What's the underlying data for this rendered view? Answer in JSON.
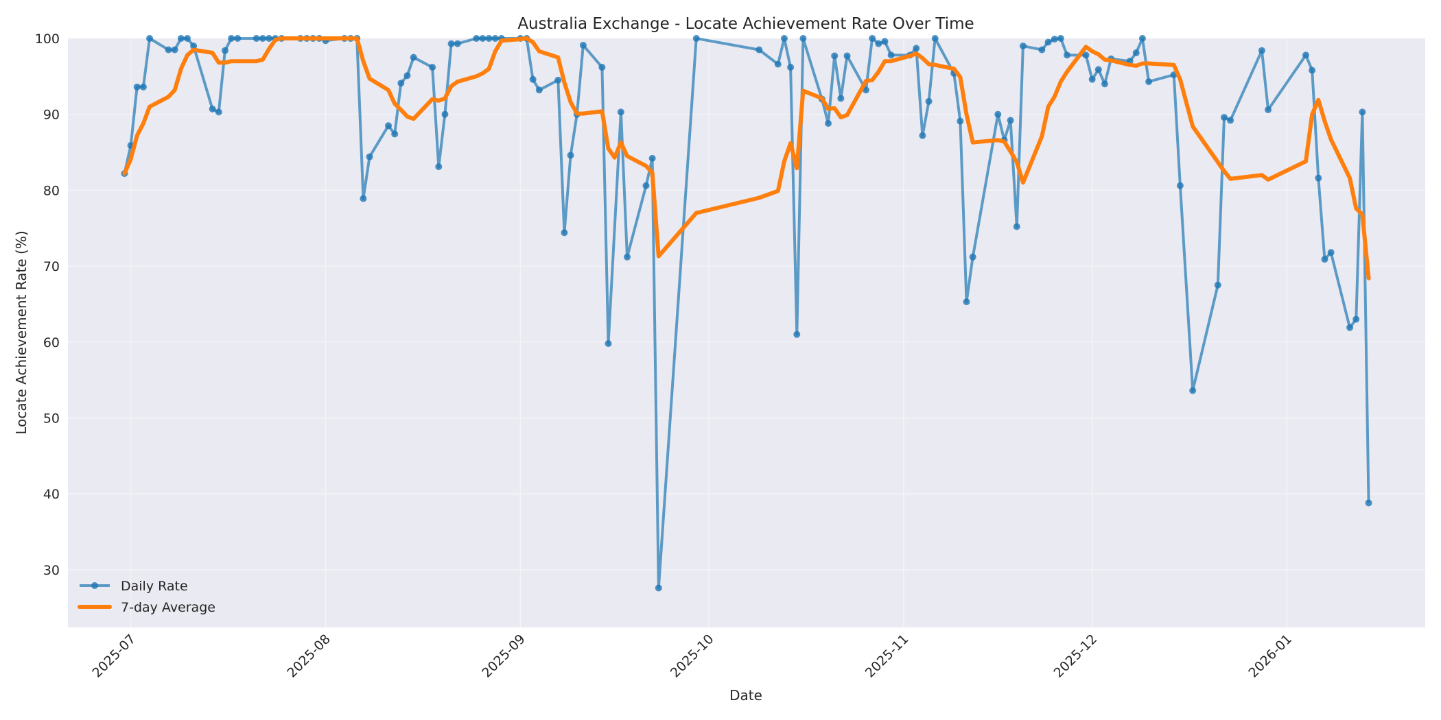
{
  "chart_data": {
    "type": "line",
    "title": "Australia Exchange - Locate Achievement Rate Over Time",
    "xlabel": "Date",
    "ylabel": "Locate Achievement Rate (%)",
    "ylim": [
      22.4,
      100
    ],
    "yticks": [
      30,
      40,
      50,
      60,
      70,
      80,
      90,
      100
    ],
    "xticks": [
      "2025-07",
      "2025-08",
      "2025-09",
      "2025-10",
      "2025-11",
      "2025-12",
      "2026-01"
    ],
    "xlim": [
      "2025-06-21",
      "2026-01-23"
    ],
    "grid": true,
    "legend_position": "lower left",
    "colors": {
      "daily": "#1f77b4",
      "avg": "#ff7f0e",
      "background": "#eaeaf2",
      "grid": "#f5f5f8"
    },
    "series": [
      {
        "name": "Daily Rate",
        "style": "line-with-markers",
        "points": [
          [
            "2025-06-30",
            82.2
          ],
          [
            "2025-07-01",
            85.9
          ],
          [
            "2025-07-02",
            93.6
          ],
          [
            "2025-07-03",
            93.6
          ],
          [
            "2025-07-04",
            100
          ],
          [
            "2025-07-07",
            98.5
          ],
          [
            "2025-07-08",
            98.5
          ],
          [
            "2025-07-09",
            100
          ],
          [
            "2025-07-10",
            100
          ],
          [
            "2025-07-11",
            99.0
          ],
          [
            "2025-07-14",
            90.7
          ],
          [
            "2025-07-15",
            90.3
          ],
          [
            "2025-07-16",
            98.4
          ],
          [
            "2025-07-17",
            100
          ],
          [
            "2025-07-18",
            100
          ],
          [
            "2025-07-21",
            100
          ],
          [
            "2025-07-22",
            100
          ],
          [
            "2025-07-23",
            100
          ],
          [
            "2025-07-24",
            100
          ],
          [
            "2025-07-25",
            100
          ],
          [
            "2025-07-28",
            100
          ],
          [
            "2025-07-29",
            100
          ],
          [
            "2025-07-30",
            100
          ],
          [
            "2025-07-31",
            100
          ],
          [
            "2025-08-01",
            99.7
          ],
          [
            "2025-08-04",
            100
          ],
          [
            "2025-08-05",
            100
          ],
          [
            "2025-08-06",
            100
          ],
          [
            "2025-08-07",
            78.9
          ],
          [
            "2025-08-08",
            84.4
          ],
          [
            "2025-08-11",
            88.5
          ],
          [
            "2025-08-12",
            87.4
          ],
          [
            "2025-08-13",
            94.1
          ],
          [
            "2025-08-14",
            95.1
          ],
          [
            "2025-08-15",
            97.5
          ],
          [
            "2025-08-18",
            96.2
          ],
          [
            "2025-08-19",
            83.1
          ],
          [
            "2025-08-20",
            90.0
          ],
          [
            "2025-08-21",
            99.3
          ],
          [
            "2025-08-22",
            99.3
          ],
          [
            "2025-08-25",
            100
          ],
          [
            "2025-08-26",
            100
          ],
          [
            "2025-08-27",
            100
          ],
          [
            "2025-08-28",
            100
          ],
          [
            "2025-08-29",
            100
          ],
          [
            "2025-09-01",
            100
          ],
          [
            "2025-09-02",
            100
          ],
          [
            "2025-09-03",
            94.6
          ],
          [
            "2025-09-04",
            93.2
          ],
          [
            "2025-09-07",
            94.5
          ],
          [
            "2025-09-08",
            74.4
          ],
          [
            "2025-09-09",
            84.6
          ],
          [
            "2025-09-10",
            90.0
          ],
          [
            "2025-09-11",
            99.1
          ],
          [
            "2025-09-14",
            96.2
          ],
          [
            "2025-09-15",
            59.8
          ],
          [
            "2025-09-17",
            90.3
          ],
          [
            "2025-09-18",
            71.2
          ],
          [
            "2025-09-21",
            80.6
          ],
          [
            "2025-09-22",
            84.2
          ],
          [
            "2025-09-23",
            27.6
          ],
          [
            "2025-09-29",
            100
          ],
          [
            "2025-10-09",
            98.5
          ],
          [
            "2025-10-12",
            96.6
          ],
          [
            "2025-10-13",
            100
          ],
          [
            "2025-10-14",
            96.2
          ],
          [
            "2025-10-15",
            61.0
          ],
          [
            "2025-10-16",
            100
          ],
          [
            "2025-10-19",
            92.0
          ],
          [
            "2025-10-20",
            88.8
          ],
          [
            "2025-10-21",
            97.7
          ],
          [
            "2025-10-22",
            92.1
          ],
          [
            "2025-10-23",
            97.7
          ],
          [
            "2025-10-26",
            93.2
          ],
          [
            "2025-10-27",
            100
          ],
          [
            "2025-10-28",
            99.3
          ],
          [
            "2025-10-29",
            99.6
          ],
          [
            "2025-10-30",
            97.8
          ],
          [
            "2025-11-02",
            97.8
          ],
          [
            "2025-11-03",
            98.7
          ],
          [
            "2025-11-04",
            87.2
          ],
          [
            "2025-11-05",
            91.7
          ],
          [
            "2025-11-06",
            100
          ],
          [
            "2025-11-09",
            95.4
          ],
          [
            "2025-11-10",
            89.1
          ],
          [
            "2025-11-11",
            65.3
          ],
          [
            "2025-11-12",
            71.2
          ],
          [
            "2025-11-16",
            90.0
          ],
          [
            "2025-11-17",
            86.6
          ],
          [
            "2025-11-18",
            89.2
          ],
          [
            "2025-11-19",
            75.2
          ],
          [
            "2025-11-20",
            99.0
          ],
          [
            "2025-11-23",
            98.5
          ],
          [
            "2025-11-24",
            99.5
          ],
          [
            "2025-11-25",
            99.9
          ],
          [
            "2025-11-26",
            100
          ],
          [
            "2025-11-27",
            97.8
          ],
          [
            "2025-11-30",
            97.8
          ],
          [
            "2025-12-01",
            94.6
          ],
          [
            "2025-12-02",
            95.9
          ],
          [
            "2025-12-03",
            94.0
          ],
          [
            "2025-12-04",
            97.3
          ],
          [
            "2025-12-07",
            97.0
          ],
          [
            "2025-12-08",
            98.1
          ],
          [
            "2025-12-09",
            100
          ],
          [
            "2025-12-10",
            94.3
          ],
          [
            "2025-12-14",
            95.2
          ],
          [
            "2025-12-15",
            80.6
          ],
          [
            "2025-12-17",
            53.6
          ],
          [
            "2025-12-21",
            67.5
          ],
          [
            "2025-12-22",
            89.6
          ],
          [
            "2025-12-23",
            89.2
          ],
          [
            "2025-12-28",
            98.4
          ],
          [
            "2025-12-29",
            90.6
          ],
          [
            "2026-01-04",
            97.8
          ],
          [
            "2026-01-05",
            95.8
          ],
          [
            "2026-01-06",
            81.6
          ],
          [
            "2026-01-07",
            70.9
          ],
          [
            "2026-01-08",
            71.8
          ],
          [
            "2026-01-11",
            61.9
          ],
          [
            "2026-01-12",
            63.0
          ],
          [
            "2026-01-13",
            90.3
          ],
          [
            "2026-01-14",
            38.8
          ]
        ]
      },
      {
        "name": "7-day Average",
        "style": "thick-line",
        "points": [
          [
            "2025-06-30",
            82.2
          ],
          [
            "2025-07-01",
            84.1
          ],
          [
            "2025-07-02",
            87.2
          ],
          [
            "2025-07-03",
            88.8
          ],
          [
            "2025-07-04",
            91.0
          ],
          [
            "2025-07-07",
            92.3
          ],
          [
            "2025-07-08",
            93.2
          ],
          [
            "2025-07-09",
            96.0
          ],
          [
            "2025-07-10",
            97.8
          ],
          [
            "2025-07-11",
            98.5
          ],
          [
            "2025-07-14",
            98.1
          ],
          [
            "2025-07-15",
            96.8
          ],
          [
            "2025-07-16",
            96.8
          ],
          [
            "2025-07-17",
            97.0
          ],
          [
            "2025-07-18",
            97.0
          ],
          [
            "2025-07-21",
            97.0
          ],
          [
            "2025-07-22",
            97.2
          ],
          [
            "2025-07-23",
            98.6
          ],
          [
            "2025-07-24",
            99.8
          ],
          [
            "2025-07-25",
            100
          ],
          [
            "2025-07-28",
            100
          ],
          [
            "2025-07-29",
            100
          ],
          [
            "2025-07-30",
            100
          ],
          [
            "2025-07-31",
            100
          ],
          [
            "2025-08-01",
            100
          ],
          [
            "2025-08-04",
            100
          ],
          [
            "2025-08-05",
            100
          ],
          [
            "2025-08-06",
            100
          ],
          [
            "2025-08-07",
            97.0
          ],
          [
            "2025-08-08",
            94.7
          ],
          [
            "2025-08-11",
            93.2
          ],
          [
            "2025-08-12",
            91.4
          ],
          [
            "2025-08-13",
            90.6
          ],
          [
            "2025-08-14",
            89.7
          ],
          [
            "2025-08-15",
            89.4
          ],
          [
            "2025-08-18",
            92.0
          ],
          [
            "2025-08-19",
            91.8
          ],
          [
            "2025-08-20",
            92.1
          ],
          [
            "2025-08-21",
            93.7
          ],
          [
            "2025-08-22",
            94.3
          ],
          [
            "2025-08-25",
            95.0
          ],
          [
            "2025-08-26",
            95.4
          ],
          [
            "2025-08-27",
            96.0
          ],
          [
            "2025-08-28",
            98.3
          ],
          [
            "2025-08-29",
            99.7
          ],
          [
            "2025-09-01",
            99.9
          ],
          [
            "2025-09-02",
            100
          ],
          [
            "2025-09-03",
            99.5
          ],
          [
            "2025-09-04",
            98.3
          ],
          [
            "2025-09-07",
            97.5
          ],
          [
            "2025-09-08",
            94.2
          ],
          [
            "2025-09-09",
            91.6
          ],
          [
            "2025-09-10",
            90.1
          ],
          [
            "2025-09-11",
            90.1
          ],
          [
            "2025-09-14",
            90.4
          ],
          [
            "2025-09-15",
            85.5
          ],
          [
            "2025-09-16",
            84.3
          ],
          [
            "2025-09-17",
            86.3
          ],
          [
            "2025-09-18",
            84.5
          ],
          [
            "2025-09-21",
            83.2
          ],
          [
            "2025-09-22",
            82.3
          ],
          [
            "2025-09-23",
            71.3
          ],
          [
            "2025-09-29",
            77.0
          ],
          [
            "2025-10-09",
            79.0
          ],
          [
            "2025-10-12",
            79.9
          ],
          [
            "2025-10-13",
            83.8
          ],
          [
            "2025-10-14",
            86.2
          ],
          [
            "2025-10-15",
            82.9
          ],
          [
            "2025-10-16",
            93.1
          ],
          [
            "2025-10-19",
            92.1
          ],
          [
            "2025-10-20",
            90.7
          ],
          [
            "2025-10-21",
            90.8
          ],
          [
            "2025-10-22",
            89.6
          ],
          [
            "2025-10-23",
            89.9
          ],
          [
            "2025-10-26",
            94.4
          ],
          [
            "2025-10-27",
            94.5
          ],
          [
            "2025-10-28",
            95.6
          ],
          [
            "2025-10-29",
            97.0
          ],
          [
            "2025-10-30",
            97.0
          ],
          [
            "2025-11-02",
            97.7
          ],
          [
            "2025-11-03",
            98.0
          ],
          [
            "2025-11-04",
            97.4
          ],
          [
            "2025-11-05",
            96.6
          ],
          [
            "2025-11-06",
            96.5
          ],
          [
            "2025-11-09",
            96.0
          ],
          [
            "2025-11-10",
            94.9
          ],
          [
            "2025-11-11",
            90.0
          ],
          [
            "2025-11-12",
            86.3
          ],
          [
            "2025-11-16",
            86.6
          ],
          [
            "2025-11-17",
            86.4
          ],
          [
            "2025-11-18",
            85.1
          ],
          [
            "2025-11-19",
            83.7
          ],
          [
            "2025-11-20",
            81.0
          ],
          [
            "2025-11-23",
            87.1
          ],
          [
            "2025-11-24",
            91.0
          ],
          [
            "2025-11-25",
            92.3
          ],
          [
            "2025-11-26",
            94.3
          ],
          [
            "2025-11-27",
            95.6
          ],
          [
            "2025-11-30",
            98.9
          ],
          [
            "2025-12-01",
            98.3
          ],
          [
            "2025-12-02",
            97.9
          ],
          [
            "2025-12-03",
            97.2
          ],
          [
            "2025-12-04",
            97.1
          ],
          [
            "2025-12-07",
            96.5
          ],
          [
            "2025-12-08",
            96.4
          ],
          [
            "2025-12-09",
            96.7
          ],
          [
            "2025-12-10",
            96.7
          ],
          [
            "2025-12-14",
            96.5
          ],
          [
            "2025-12-15",
            94.6
          ],
          [
            "2025-12-17",
            88.4
          ],
          [
            "2025-12-21",
            83.7
          ],
          [
            "2025-12-22",
            82.5
          ],
          [
            "2025-12-23",
            81.5
          ],
          [
            "2025-12-28",
            82.0
          ],
          [
            "2025-12-29",
            81.4
          ],
          [
            "2026-01-04",
            83.8
          ],
          [
            "2026-01-05",
            90.0
          ],
          [
            "2026-01-06",
            91.9
          ],
          [
            "2026-01-07",
            89.1
          ],
          [
            "2026-01-08",
            86.7
          ],
          [
            "2026-01-11",
            81.6
          ],
          [
            "2026-01-12",
            77.6
          ],
          [
            "2026-01-13",
            76.8
          ],
          [
            "2026-01-14",
            68.4
          ]
        ]
      }
    ]
  }
}
